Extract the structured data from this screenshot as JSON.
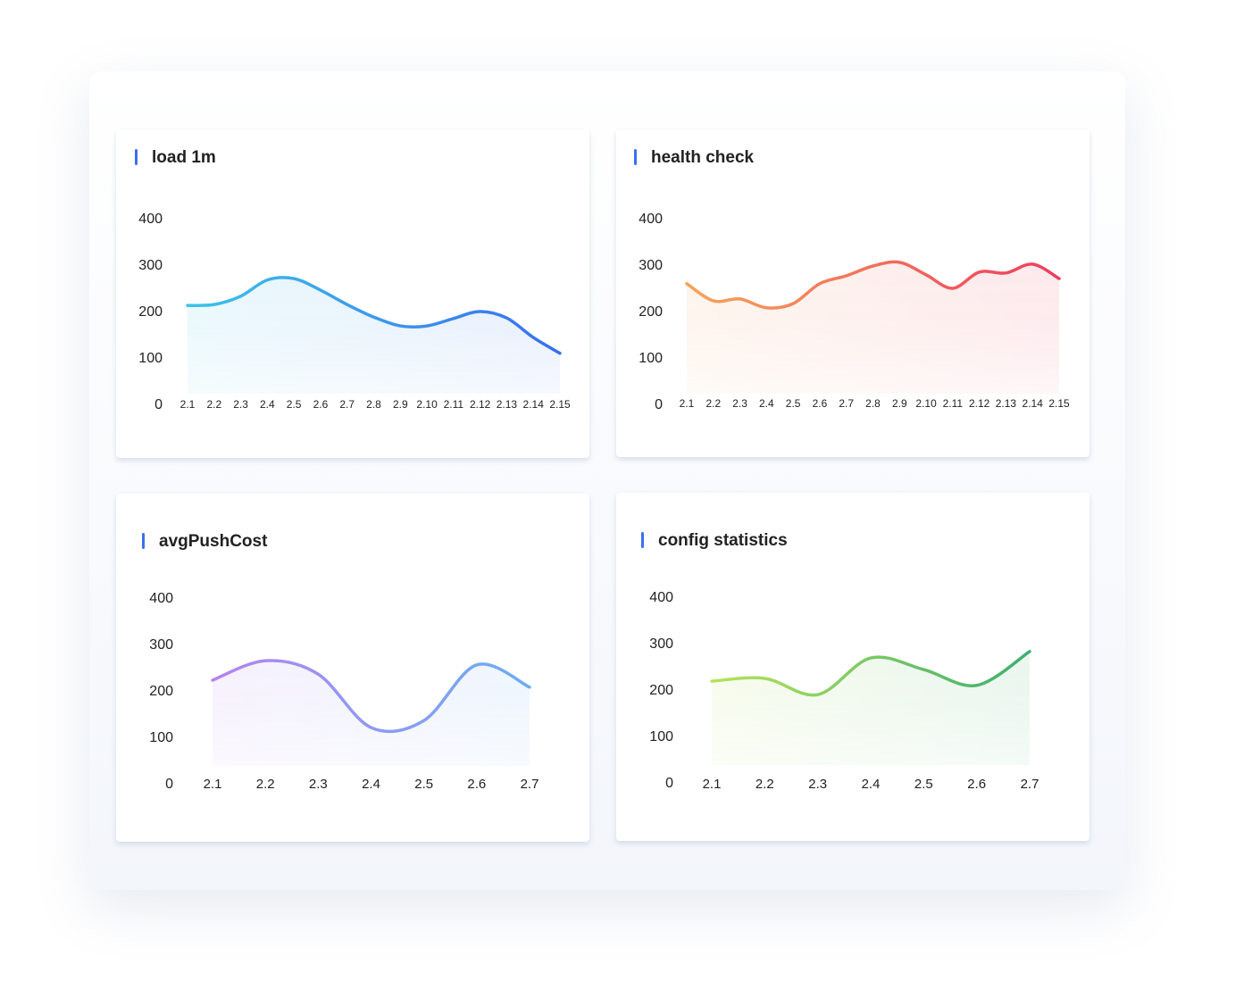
{
  "chart_data": [
    {
      "type": "area",
      "title": "load 1m",
      "categories": [
        "2.1",
        "2.2",
        "2.3",
        "2.4",
        "2.5",
        "2.6",
        "2.7",
        "2.8",
        "2.9",
        "2.10",
        "2.11",
        "2.12",
        "2.13",
        "2.14",
        "2.15"
      ],
      "values": [
        215,
        217,
        235,
        270,
        273,
        248,
        217,
        190,
        171,
        171,
        187,
        202,
        188,
        146,
        112
      ],
      "colors": [
        "#3cc3e8",
        "#3a6ff0"
      ],
      "ylim": [
        0,
        400
      ],
      "yticks": [
        0,
        100,
        200,
        300,
        400
      ]
    },
    {
      "type": "area",
      "title": "health check",
      "categories": [
        "2.1",
        "2.2",
        "2.3",
        "2.4",
        "2.5",
        "2.6",
        "2.7",
        "2.8",
        "2.9",
        "2.10",
        "2.11",
        "2.12",
        "2.13",
        "2.14",
        "2.15"
      ],
      "values": [
        262,
        225,
        229,
        210,
        219,
        262,
        279,
        300,
        308,
        281,
        252,
        287,
        285,
        304,
        273
      ],
      "colors": [
        "#f8a35a",
        "#ee3d5e"
      ],
      "ylim": [
        0,
        400
      ],
      "yticks": [
        0,
        100,
        200,
        300,
        400
      ]
    },
    {
      "type": "area",
      "title": "avgPushCost",
      "categories": [
        "2.1",
        "2.2",
        "2.3",
        "2.4",
        "2.5",
        "2.6",
        "2.7"
      ],
      "values": [
        225,
        267,
        238,
        123,
        138,
        258,
        210
      ],
      "colors": [
        "#b584f0",
        "#6aaef0"
      ],
      "ylim": [
        0,
        400
      ],
      "yticks": [
        0,
        100,
        200,
        300,
        400
      ]
    },
    {
      "type": "area",
      "title": "config statistics",
      "categories": [
        "2.1",
        "2.2",
        "2.3",
        "2.4",
        "2.5",
        "2.6",
        "2.7"
      ],
      "values": [
        221,
        227,
        192,
        271,
        246,
        212,
        285
      ],
      "colors": [
        "#b5e35a",
        "#3fae6e"
      ],
      "ylim": [
        0,
        400
      ],
      "yticks": [
        0,
        100,
        200,
        300,
        400
      ]
    }
  ]
}
